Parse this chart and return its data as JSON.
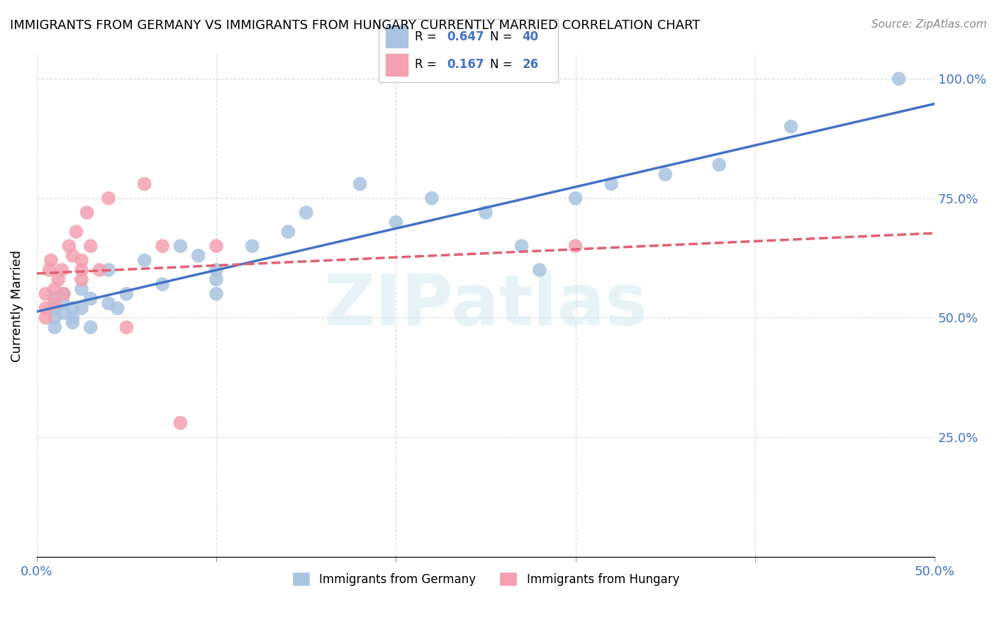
{
  "title": "IMMIGRANTS FROM GERMANY VS IMMIGRANTS FROM HUNGARY CURRENTLY MARRIED CORRELATION CHART",
  "source": "Source: ZipAtlas.com",
  "ylabel": "Currently Married",
  "xlabel": "",
  "xlim": [
    0.0,
    0.5
  ],
  "ylim": [
    0.0,
    1.05
  ],
  "x_ticks": [
    0.0,
    0.1,
    0.2,
    0.3,
    0.4,
    0.5
  ],
  "x_tick_labels": [
    "0.0%",
    "",
    "",
    "",
    "",
    "50.0%"
  ],
  "y_ticks": [
    0.0,
    0.25,
    0.5,
    0.75,
    1.0
  ],
  "y_tick_labels": [
    "",
    "25.0%",
    "50.0%",
    "75.0%",
    "100.0%"
  ],
  "germany_R": 0.647,
  "germany_N": 40,
  "hungary_R": 0.167,
  "hungary_N": 26,
  "germany_color": "#a8c4e0",
  "hungary_color": "#f4a0b0",
  "germany_line_color": "#4472c4",
  "hungary_line_color": "#e06070",
  "watermark": "ZIPatlas",
  "germany_x": [
    0.01,
    0.01,
    0.01,
    0.01,
    0.015,
    0.015,
    0.015,
    0.02,
    0.02,
    0.02,
    0.025,
    0.025,
    0.03,
    0.03,
    0.04,
    0.04,
    0.045,
    0.05,
    0.06,
    0.07,
    0.08,
    0.09,
    0.1,
    0.1,
    0.1,
    0.12,
    0.14,
    0.15,
    0.18,
    0.2,
    0.22,
    0.25,
    0.27,
    0.28,
    0.3,
    0.32,
    0.35,
    0.38,
    0.42,
    0.48
  ],
  "germany_y": [
    0.52,
    0.54,
    0.5,
    0.48,
    0.53,
    0.51,
    0.55,
    0.52,
    0.5,
    0.49,
    0.56,
    0.52,
    0.54,
    0.48,
    0.6,
    0.53,
    0.52,
    0.55,
    0.62,
    0.57,
    0.65,
    0.63,
    0.58,
    0.6,
    0.55,
    0.65,
    0.68,
    0.72,
    0.78,
    0.7,
    0.75,
    0.72,
    0.65,
    0.6,
    0.75,
    0.78,
    0.8,
    0.82,
    0.9,
    1.0
  ],
  "hungary_x": [
    0.005,
    0.005,
    0.005,
    0.007,
    0.008,
    0.01,
    0.01,
    0.012,
    0.014,
    0.015,
    0.018,
    0.02,
    0.022,
    0.025,
    0.025,
    0.025,
    0.028,
    0.03,
    0.035,
    0.04,
    0.05,
    0.06,
    0.07,
    0.08,
    0.1,
    0.3
  ],
  "hungary_y": [
    0.55,
    0.52,
    0.5,
    0.6,
    0.62,
    0.56,
    0.53,
    0.58,
    0.6,
    0.55,
    0.65,
    0.63,
    0.68,
    0.62,
    0.6,
    0.58,
    0.72,
    0.65,
    0.6,
    0.75,
    0.48,
    0.78,
    0.65,
    0.28,
    0.65,
    0.65
  ]
}
